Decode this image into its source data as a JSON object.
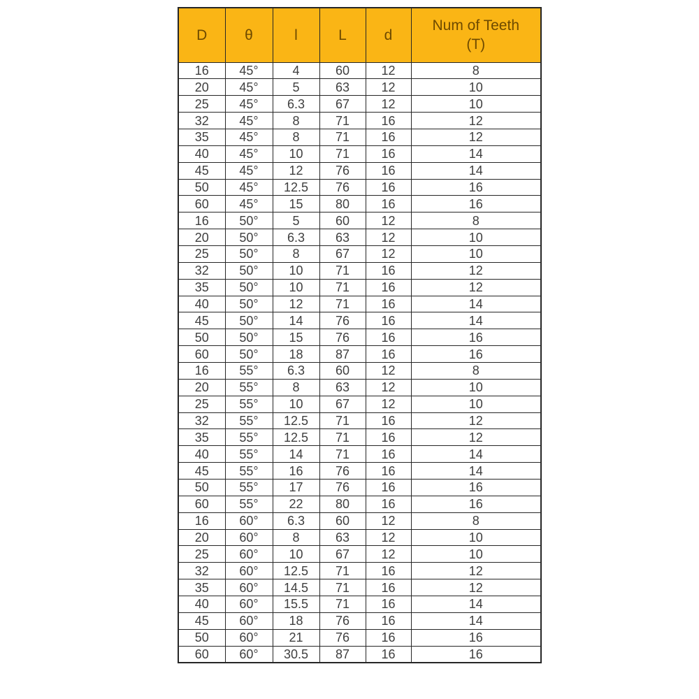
{
  "table": {
    "header": {
      "big_d": "D",
      "theta": "θ",
      "small_l": "l",
      "big_l": "L",
      "small_d": "d",
      "teeth_line1": "Num of Teeth",
      "teeth_line2": "(T)"
    },
    "style": {
      "page_bg": "#FFFFFF",
      "header_bg": "#FAB515",
      "header_text": "#6E4A00",
      "border_color": "#262626",
      "body_text": "#3F3F3F"
    }
  },
  "chart_data": {
    "type": "table",
    "columns": [
      "D",
      "θ",
      "l",
      "L",
      "d",
      "Num of Teeth (T)"
    ],
    "rows": [
      [
        "16",
        "45°",
        "4",
        "60",
        "12",
        "8"
      ],
      [
        "20",
        "45°",
        "5",
        "63",
        "12",
        "10"
      ],
      [
        "25",
        "45°",
        "6.3",
        "67",
        "12",
        "10"
      ],
      [
        "32",
        "45°",
        "8",
        "71",
        "16",
        "12"
      ],
      [
        "35",
        "45°",
        "8",
        "71",
        "16",
        "12"
      ],
      [
        "40",
        "45°",
        "10",
        "71",
        "16",
        "14"
      ],
      [
        "45",
        "45°",
        "12",
        "76",
        "16",
        "14"
      ],
      [
        "50",
        "45°",
        "12.5",
        "76",
        "16",
        "16"
      ],
      [
        "60",
        "45°",
        "15",
        "80",
        "16",
        "16"
      ],
      [
        "16",
        "50°",
        "5",
        "60",
        "12",
        "8"
      ],
      [
        "20",
        "50°",
        "6.3",
        "63",
        "12",
        "10"
      ],
      [
        "25",
        "50°",
        "8",
        "67",
        "12",
        "10"
      ],
      [
        "32",
        "50°",
        "10",
        "71",
        "16",
        "12"
      ],
      [
        "35",
        "50°",
        "10",
        "71",
        "16",
        "12"
      ],
      [
        "40",
        "50°",
        "12",
        "71",
        "16",
        "14"
      ],
      [
        "45",
        "50°",
        "14",
        "76",
        "16",
        "14"
      ],
      [
        "50",
        "50°",
        "15",
        "76",
        "16",
        "16"
      ],
      [
        "60",
        "50°",
        "18",
        "87",
        "16",
        "16"
      ],
      [
        "16",
        "55°",
        "6.3",
        "60",
        "12",
        "8"
      ],
      [
        "20",
        "55°",
        "8",
        "63",
        "12",
        "10"
      ],
      [
        "25",
        "55°",
        "10",
        "67",
        "12",
        "10"
      ],
      [
        "32",
        "55°",
        "12.5",
        "71",
        "16",
        "12"
      ],
      [
        "35",
        "55°",
        "12.5",
        "71",
        "16",
        "12"
      ],
      [
        "40",
        "55°",
        "14",
        "71",
        "16",
        "14"
      ],
      [
        "45",
        "55°",
        "16",
        "76",
        "16",
        "14"
      ],
      [
        "50",
        "55°",
        "17",
        "76",
        "16",
        "16"
      ],
      [
        "60",
        "55°",
        "22",
        "80",
        "16",
        "16"
      ],
      [
        "16",
        "60°",
        "6.3",
        "60",
        "12",
        "8"
      ],
      [
        "20",
        "60°",
        "8",
        "63",
        "12",
        "10"
      ],
      [
        "25",
        "60°",
        "10",
        "67",
        "12",
        "10"
      ],
      [
        "32",
        "60°",
        "12.5",
        "71",
        "16",
        "12"
      ],
      [
        "35",
        "60°",
        "14.5",
        "71",
        "16",
        "12"
      ],
      [
        "40",
        "60°",
        "15.5",
        "71",
        "16",
        "14"
      ],
      [
        "45",
        "60°",
        "18",
        "76",
        "16",
        "14"
      ],
      [
        "50",
        "60°",
        "21",
        "76",
        "16",
        "16"
      ],
      [
        "60",
        "60°",
        "30.5",
        "87",
        "16",
        "16"
      ]
    ]
  }
}
